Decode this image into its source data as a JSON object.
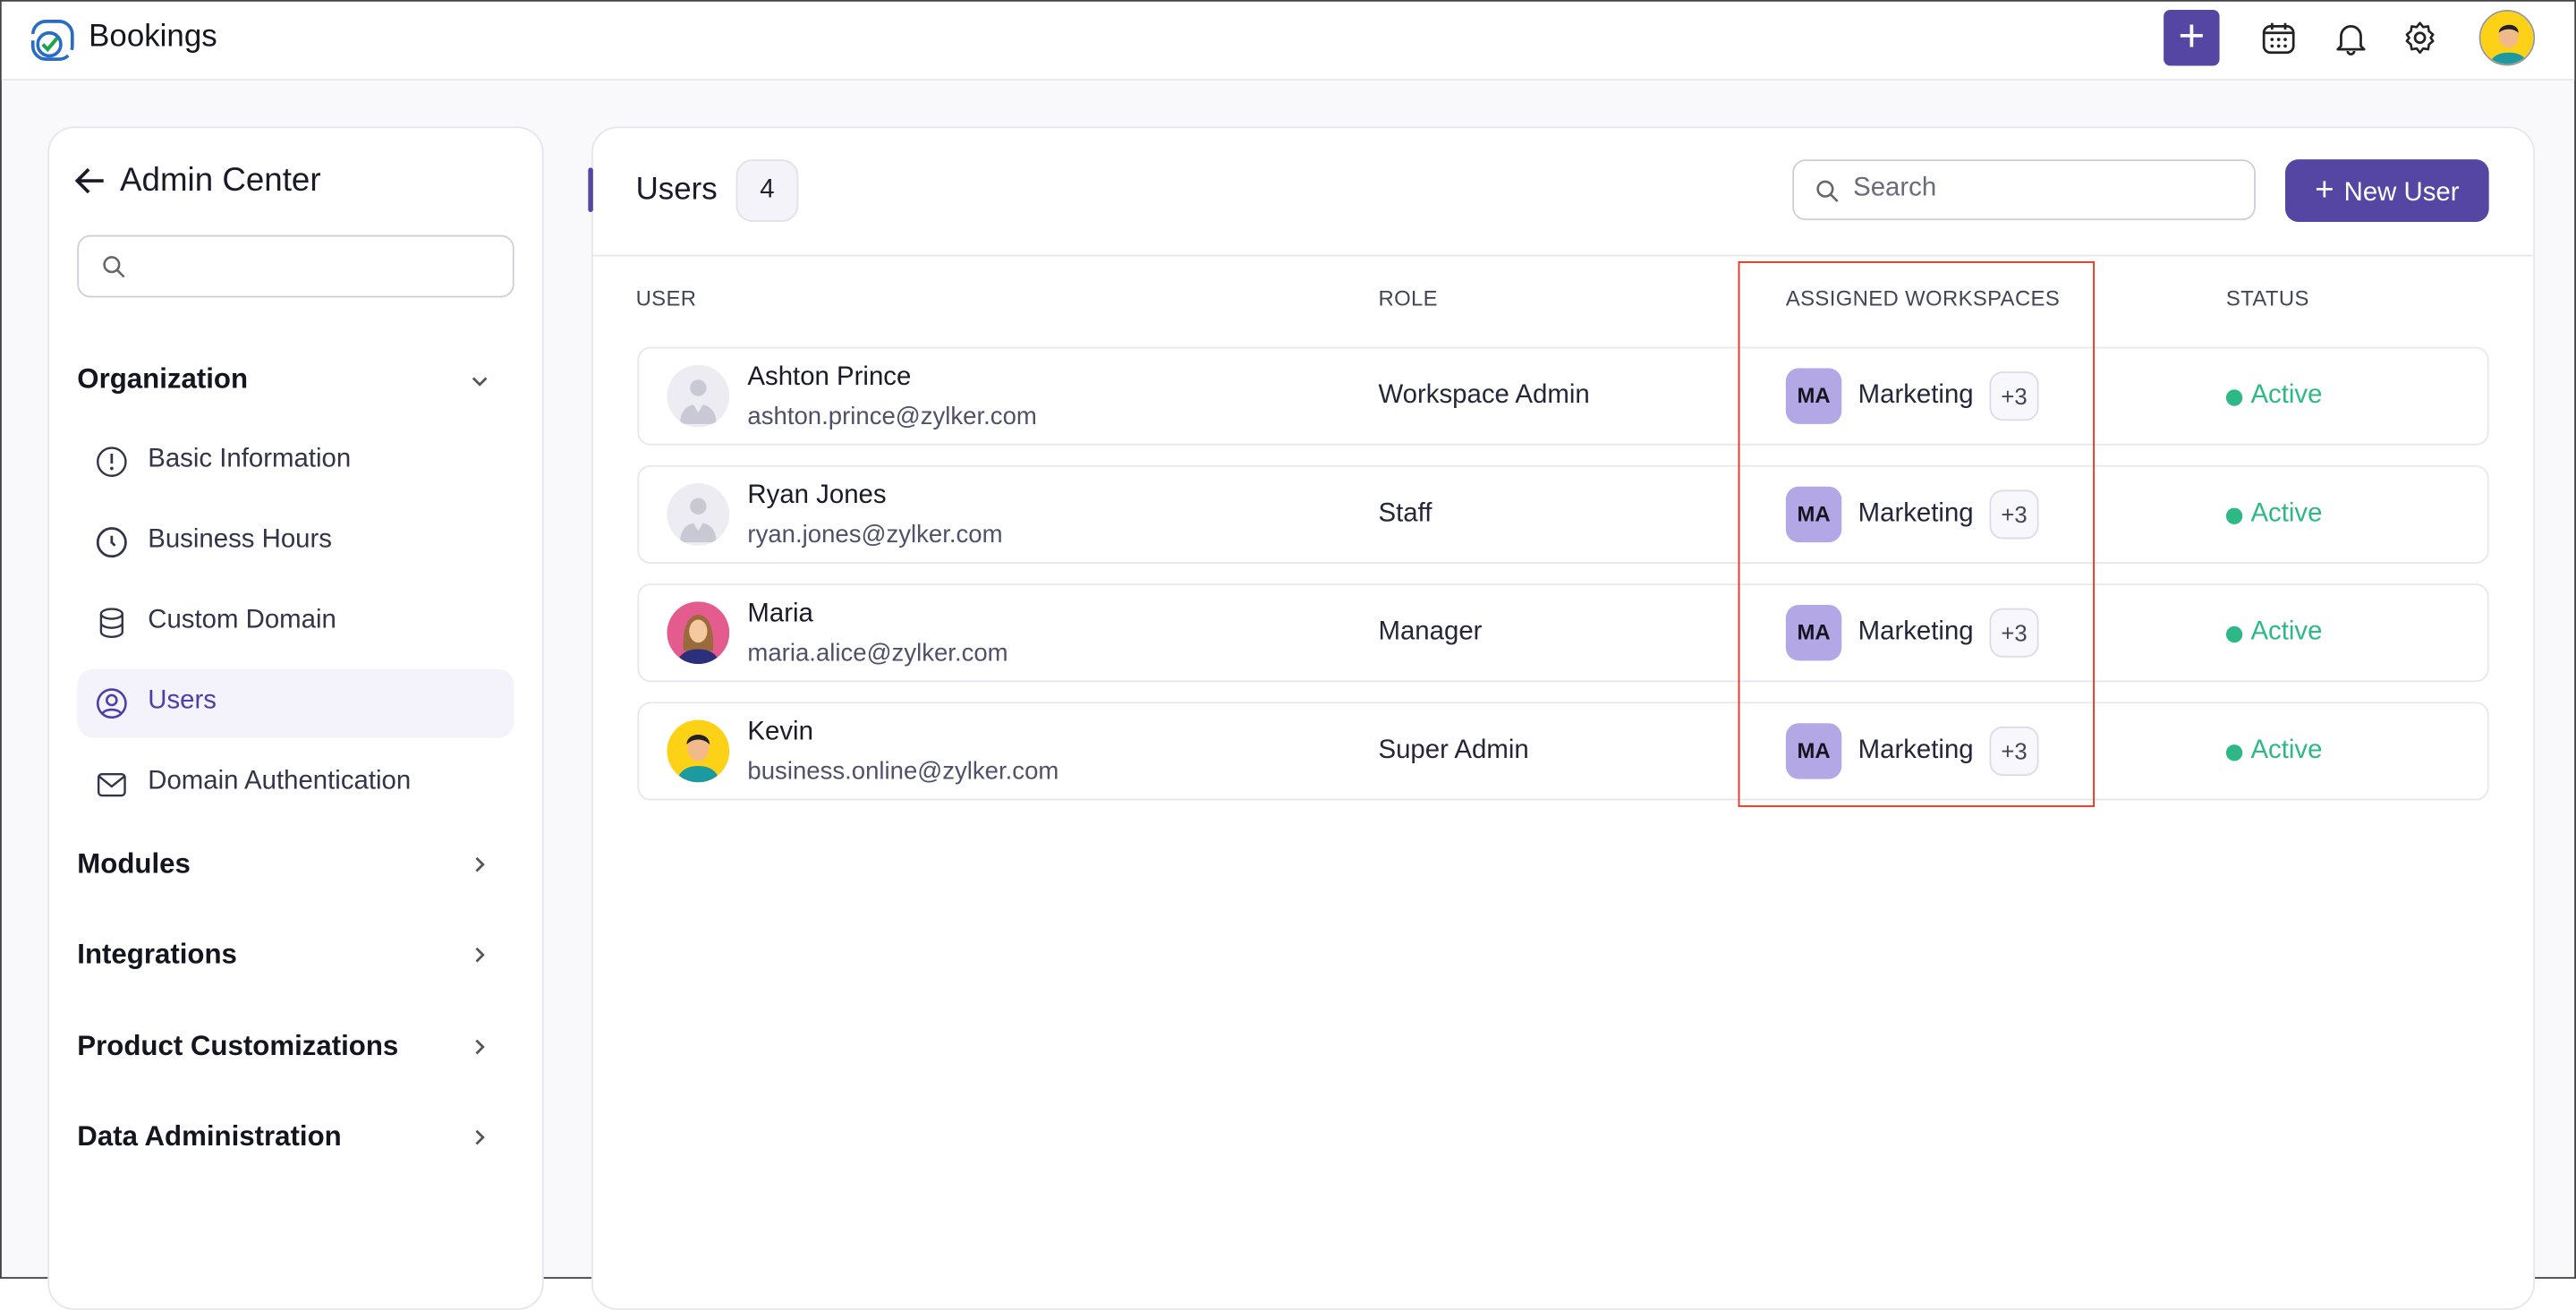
{
  "app": {
    "title": "Bookings",
    "accent": "#5546a3"
  },
  "topbar": {
    "icons": [
      "plus-icon",
      "calendar-icon",
      "bell-icon",
      "gear-icon",
      "user-avatar"
    ]
  },
  "sidebar": {
    "title": "Admin Center",
    "search_placeholder": "",
    "sections": [
      {
        "label": "Organization",
        "expanded": true,
        "items": [
          {
            "label": "Basic Information",
            "icon": "info-icon"
          },
          {
            "label": "Business Hours",
            "icon": "clock-icon"
          },
          {
            "label": "Custom Domain",
            "icon": "database-icon"
          },
          {
            "label": "Users",
            "icon": "user-circle-icon",
            "active": true
          },
          {
            "label": "Domain Authentication",
            "icon": "mail-icon"
          }
        ]
      },
      {
        "label": "Modules"
      },
      {
        "label": "Integrations"
      },
      {
        "label": "Product Customizations"
      },
      {
        "label": "Data Administration"
      }
    ]
  },
  "main": {
    "title": "Users",
    "count": "4",
    "search_placeholder": "Search",
    "new_user_label": "New User",
    "columns": [
      "USER",
      "ROLE",
      "ASSIGNED WORKSPACES",
      "STATUS"
    ],
    "rows": [
      {
        "name": "Ashton Prince",
        "email": "ashton.prince@zylker.com",
        "role": "Workspace Admin",
        "ws_abbr": "MA",
        "workspace": "Marketing",
        "more": "+3",
        "status": "Active"
      },
      {
        "name": "Ryan Jones",
        "email": "ryan.jones@zylker.com",
        "role": "Staff",
        "ws_abbr": "MA",
        "workspace": "Marketing",
        "more": "+3",
        "status": "Active"
      },
      {
        "name": "Maria",
        "email": "maria.alice@zylker.com",
        "role": "Manager",
        "ws_abbr": "MA",
        "workspace": "Marketing",
        "more": "+3",
        "status": "Active"
      },
      {
        "name": "Kevin",
        "email": "business.online@zylker.com",
        "role": "Super Admin",
        "ws_abbr": "MA",
        "workspace": "Marketing",
        "more": "+3",
        "status": "Active"
      }
    ],
    "status_color": "#2eb886",
    "highlight_color": "#e8321c"
  }
}
